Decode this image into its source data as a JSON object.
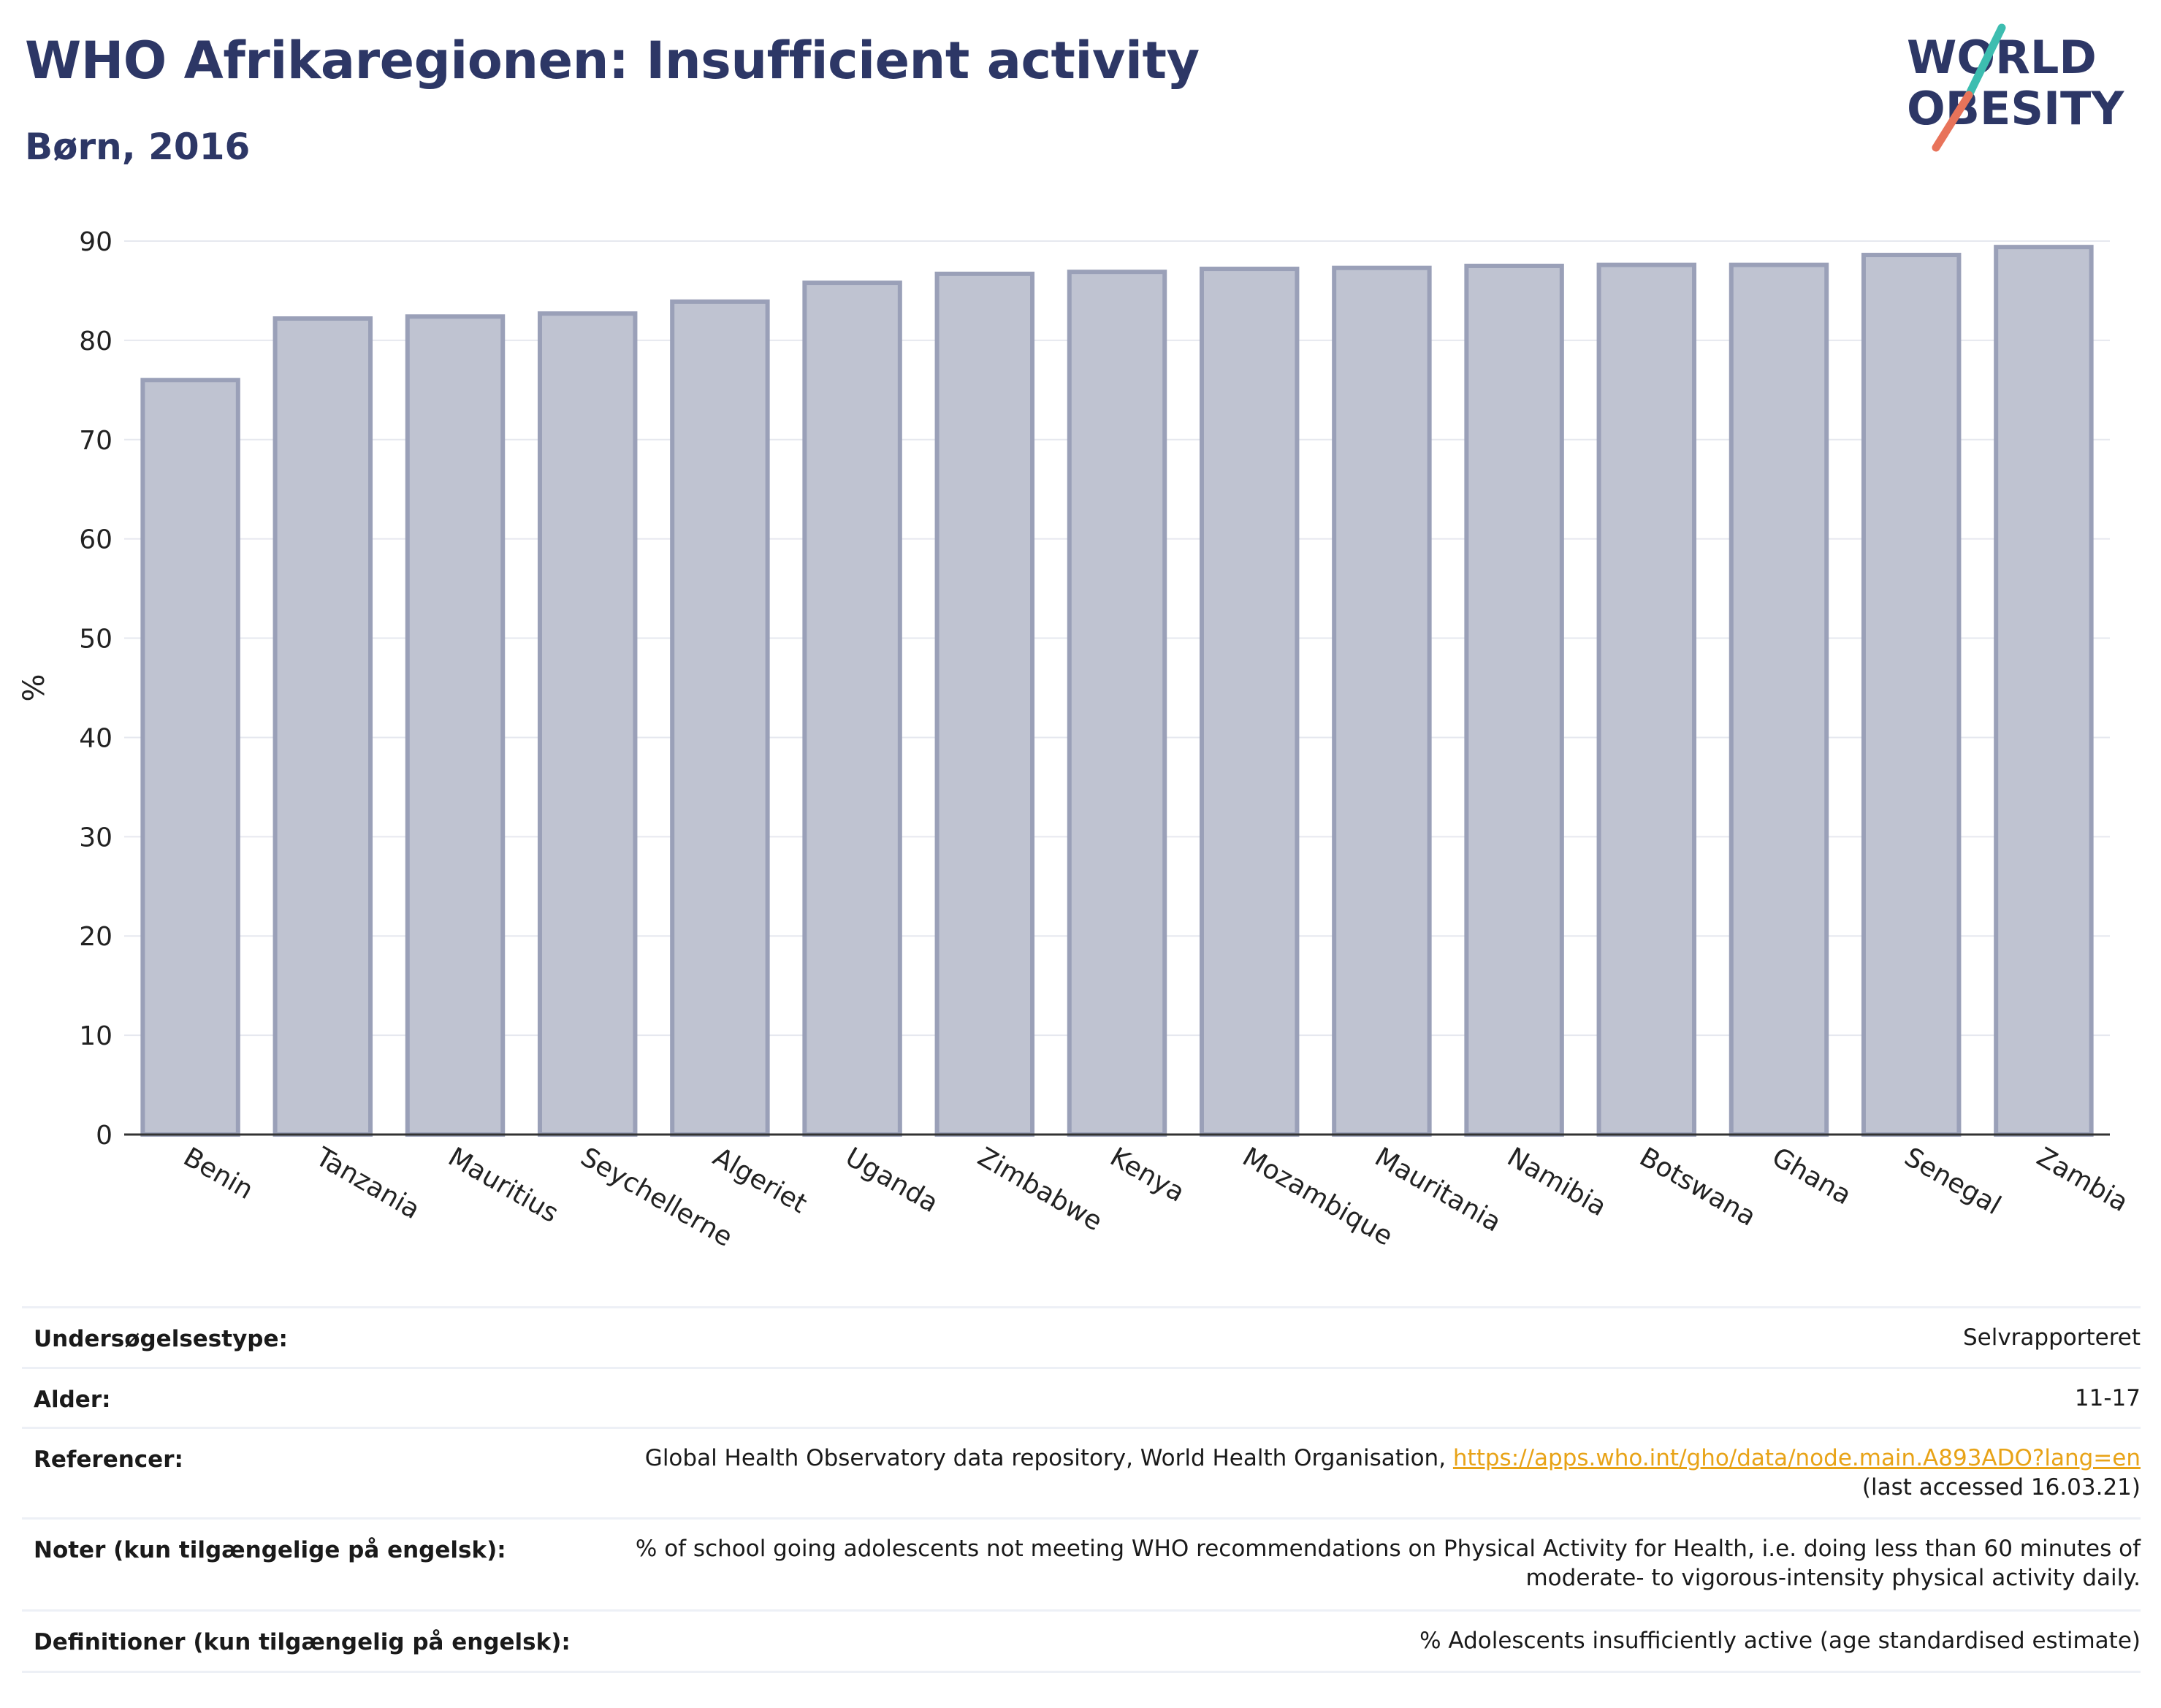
{
  "header": {
    "title": "WHO Afrikaregionen: Insufficient activity",
    "subtitle": "Børn, 2016",
    "logo_line1": "WORLD",
    "logo_line2": "OBESITY"
  },
  "colors": {
    "title": "#2d3766",
    "bar_fill": "#bfc3d1",
    "bar_stroke": "#9aa0b8",
    "link": "#e8a317",
    "logo_teal": "#3dbdb0",
    "logo_coral": "#e8735a"
  },
  "chart_data": {
    "type": "bar",
    "title": "WHO Afrikaregionen: Insufficient activity",
    "subtitle": "Børn, 2016",
    "xlabel": "",
    "ylabel": "%",
    "ylim": [
      0,
      90
    ],
    "yticks": [
      0,
      10,
      20,
      30,
      40,
      50,
      60,
      70,
      80,
      90
    ],
    "grid": true,
    "categories": [
      "Benin",
      "Tanzania",
      "Mauritius",
      "Seychellerne",
      "Algeriet",
      "Uganda",
      "Zimbabwe",
      "Kenya",
      "Mozambique",
      "Mauritania",
      "Namibia",
      "Botswana",
      "Ghana",
      "Senegal",
      "Zambia"
    ],
    "values": [
      76.0,
      82.2,
      82.4,
      82.7,
      83.9,
      85.8,
      86.7,
      86.9,
      87.2,
      87.3,
      87.5,
      87.6,
      87.6,
      88.6,
      89.4
    ]
  },
  "info": [
    {
      "label": "Undersøgelsestype:",
      "value": "Selvrapporteret"
    },
    {
      "label": "Alder:",
      "value": "11-17"
    },
    {
      "label": "Referencer:",
      "value_prefix": "Global Health Observatory data repository, World Health Organisation, ",
      "link": "https://apps.who.int/gho/data/node.main.A893ADO?lang=en",
      "value_suffix": "(last accessed 16.03.21)"
    },
    {
      "label": "Noter (kun tilgængelige på engelsk):",
      "value": "% of school going adolescents not meeting WHO recommendations on Physical Activity for Health, i.e. doing less than 60 minutes of moderate- to vigorous-intensity physical activity daily."
    },
    {
      "label": "Definitioner (kun tilgængelig på engelsk):",
      "value": "% Adolescents insufficiently active (age standardised estimate)"
    }
  ]
}
